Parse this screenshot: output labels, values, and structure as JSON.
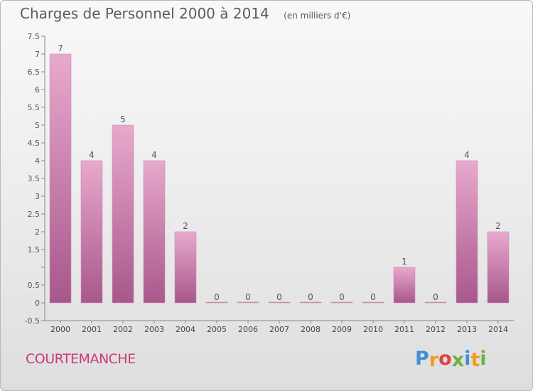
{
  "title": "Charges de Personnel 2000 à 2014",
  "unit_note": "(en milliers d'€)",
  "commune": "COURTEMANCHE",
  "logo": {
    "letters": [
      "P",
      "r",
      "o",
      "x",
      "i",
      "t",
      "i"
    ],
    "colors": [
      "#3f8fd8",
      "#f29b1c",
      "#e0443e",
      "#6cb33e",
      "#3f8fd8",
      "#f29b1c",
      "#6cb33e"
    ]
  },
  "colors": {
    "bar_top": "#e8a9cd",
    "bar_bottom": "#a8578c",
    "title": "#5c5c5c",
    "commune": "#cc3a77"
  },
  "chart_data": {
    "type": "bar",
    "title": "Charges de Personnel 2000 à 2014",
    "categories": [
      "2000",
      "2001",
      "2002",
      "2003",
      "2004",
      "2005",
      "2006",
      "2007",
      "2008",
      "2009",
      "2010",
      "2011",
      "2012",
      "2013",
      "2014"
    ],
    "values": [
      7,
      4,
      5,
      4,
      2,
      0,
      0,
      0,
      0,
      0,
      0,
      1,
      0,
      4,
      2
    ],
    "data_labels": [
      "7",
      "4",
      "5",
      "4",
      "2",
      "0",
      "0",
      "0",
      "0",
      "0",
      "0",
      "1",
      "0",
      "4",
      "2"
    ],
    "ylim": [
      -0.5,
      7.5
    ],
    "yticks": [
      -0.5,
      0,
      0.5,
      1,
      1.5,
      2,
      2.5,
      3,
      3.5,
      4,
      4.5,
      5,
      5.5,
      6,
      6.5,
      7,
      7.5
    ],
    "ytick_labels": [
      "-0.5",
      "0",
      "0.5",
      "",
      "1.5",
      "2",
      "2.5",
      "3",
      "3.5",
      "4",
      "4.5",
      "5",
      "5.5",
      "6",
      "6.5",
      "7",
      "7.5"
    ],
    "grid": false,
    "legend": "none"
  }
}
